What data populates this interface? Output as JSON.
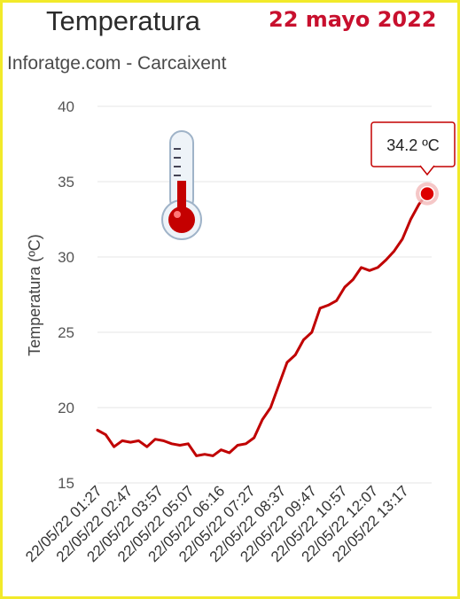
{
  "header": {
    "title": "Temperatura",
    "date": "22 mayo 2022",
    "subtitle": "Inforatge.com - Carcaixent"
  },
  "icons": {
    "thermometer": "thermometer-icon"
  },
  "colors": {
    "frame": "#f2ea2a",
    "line": "#c00000",
    "date": "#c8102e",
    "grid": "#e6e6e6"
  },
  "tooltip": {
    "text": "34.2 ºC"
  },
  "chart_data": {
    "type": "line",
    "title": "",
    "xlabel": "",
    "ylabel": "Temperatura (ºC)",
    "ylim": [
      15,
      40
    ],
    "yticks": [
      15,
      20,
      25,
      30,
      35,
      40
    ],
    "grid": true,
    "tick_labels": [
      "22/05/22 01:27",
      "22/05/22 02:47",
      "22/05/22 03:57",
      "22/05/22 05:07",
      "22/05/22 06:16",
      "22/05/22 07:27",
      "22/05/22 08:37",
      "22/05/22 09:47",
      "22/05/22 10:57",
      "22/05/22 12:07",
      "22/05/22 13:17"
    ],
    "series": [
      {
        "values": [
          18.5,
          18.2,
          17.4,
          17.8,
          17.7,
          17.8,
          17.4,
          17.9,
          17.8,
          17.6,
          17.5,
          17.6,
          16.8,
          16.9,
          16.8,
          17.2,
          17.0,
          17.5,
          17.6,
          18.0,
          19.2,
          20.0,
          21.5,
          23.0,
          23.5,
          24.5,
          25.0,
          26.6,
          26.8,
          27.1,
          28.0,
          28.5,
          29.3,
          29.1,
          29.3,
          29.8,
          30.4,
          31.2,
          32.5,
          33.5,
          34.2
        ]
      }
    ],
    "highlight": {
      "index": 40,
      "value": 34.2
    }
  }
}
